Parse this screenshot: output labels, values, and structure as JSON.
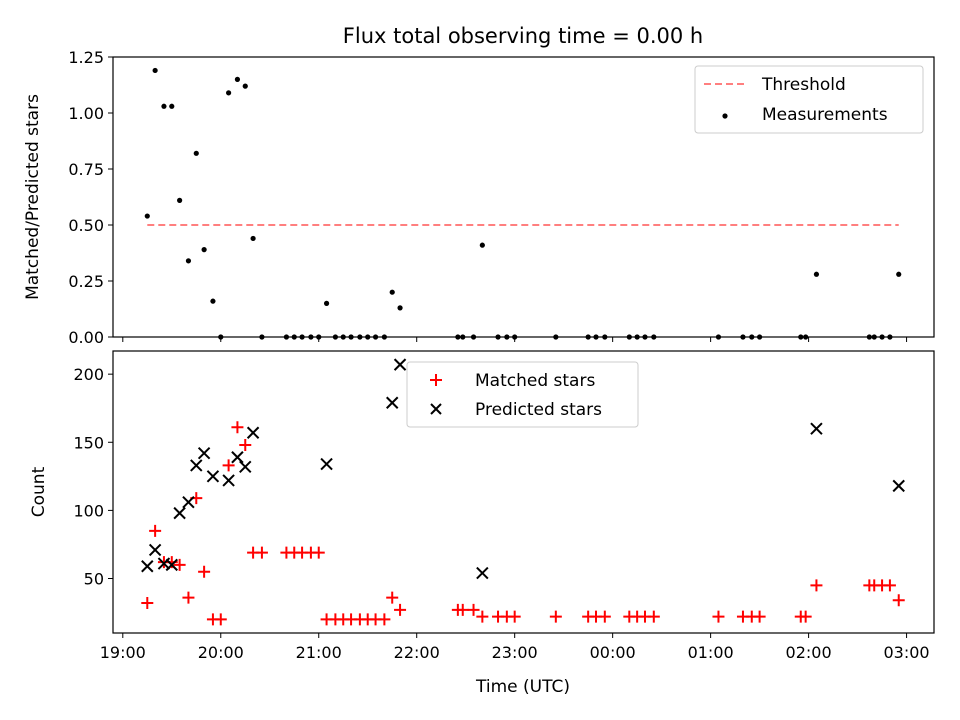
{
  "title": "Flux total observing time = 0.00 h",
  "chart_data": [
    {
      "type": "scatter",
      "ylabel": "Matched/Predicted stars",
      "ylim": [
        0,
        1.25
      ],
      "yticks": [
        "0.00",
        "0.25",
        "0.50",
        "0.75",
        "1.00",
        "1.25"
      ],
      "xlim_hours": [
        18.9,
        27.28
      ],
      "legend": {
        "placement": "top-right",
        "entries": [
          "Threshold",
          "Measurements"
        ]
      },
      "threshold": {
        "name": "Threshold",
        "value": 0.5,
        "x_start": 19.25,
        "x_end": 26.92,
        "color": "#ff7f7f"
      },
      "series": [
        {
          "name": "Measurements",
          "color": "#000000",
          "points": [
            [
              19.25,
              0.54
            ],
            [
              19.33,
              1.19
            ],
            [
              19.42,
              1.03
            ],
            [
              19.5,
              1.03
            ],
            [
              19.58,
              0.61
            ],
            [
              19.67,
              0.34
            ],
            [
              19.75,
              0.82
            ],
            [
              19.83,
              0.39
            ],
            [
              19.92,
              0.16
            ],
            [
              20.0,
              0.0
            ],
            [
              20.08,
              1.09
            ],
            [
              20.17,
              1.15
            ],
            [
              20.25,
              1.12
            ],
            [
              20.33,
              0.44
            ],
            [
              20.42,
              0.0
            ],
            [
              20.67,
              0.0
            ],
            [
              20.75,
              0.0
            ],
            [
              20.83,
              0.0
            ],
            [
              20.92,
              0.0
            ],
            [
              21.0,
              0.0
            ],
            [
              21.08,
              0.15
            ],
            [
              21.17,
              0.0
            ],
            [
              21.25,
              0.0
            ],
            [
              21.33,
              0.0
            ],
            [
              21.42,
              0.0
            ],
            [
              21.5,
              0.0
            ],
            [
              21.58,
              0.0
            ],
            [
              21.67,
              0.0
            ],
            [
              21.75,
              0.2
            ],
            [
              21.83,
              0.13
            ],
            [
              22.42,
              0.0
            ],
            [
              22.47,
              0.0
            ],
            [
              22.58,
              0.0
            ],
            [
              22.67,
              0.41
            ],
            [
              22.83,
              0.0
            ],
            [
              22.92,
              0.0
            ],
            [
              23.0,
              0.0
            ],
            [
              23.42,
              0.0
            ],
            [
              23.75,
              0.0
            ],
            [
              23.83,
              0.0
            ],
            [
              23.92,
              0.0
            ],
            [
              24.17,
              0.0
            ],
            [
              24.25,
              0.0
            ],
            [
              24.33,
              0.0
            ],
            [
              24.42,
              0.0
            ],
            [
              25.08,
              0.0
            ],
            [
              25.33,
              0.0
            ],
            [
              25.42,
              0.0
            ],
            [
              25.5,
              0.0
            ],
            [
              25.92,
              0.0
            ],
            [
              25.97,
              0.0
            ],
            [
              26.08,
              0.28
            ],
            [
              26.62,
              0.0
            ],
            [
              26.67,
              0.0
            ],
            [
              26.75,
              0.0
            ],
            [
              26.83,
              0.0
            ],
            [
              26.92,
              0.28
            ]
          ]
        }
      ]
    },
    {
      "type": "scatter",
      "xlabel": "Time (UTC)",
      "ylabel": "Count",
      "ylim": [
        10,
        217
      ],
      "yticks": [
        "50",
        "100",
        "150",
        "200"
      ],
      "xlim_hours": [
        18.9,
        27.28
      ],
      "xticks": [
        "19:00",
        "20:00",
        "21:00",
        "22:00",
        "23:00",
        "00:00",
        "01:00",
        "02:00",
        "03:00"
      ],
      "legend": {
        "placement": "top-center",
        "entries": [
          "Matched stars",
          "Predicted stars"
        ]
      },
      "series": [
        {
          "name": "Matched stars",
          "marker": "plus",
          "color": "#ff0000",
          "points": [
            [
              19.25,
              32
            ],
            [
              19.33,
              85
            ],
            [
              19.42,
              62
            ],
            [
              19.5,
              62
            ],
            [
              19.58,
              60
            ],
            [
              19.67,
              36
            ],
            [
              19.75,
              109
            ],
            [
              19.83,
              55
            ],
            [
              19.92,
              20
            ],
            [
              20.0,
              20
            ],
            [
              20.08,
              133
            ],
            [
              20.17,
              161
            ],
            [
              20.25,
              148
            ],
            [
              20.33,
              69
            ],
            [
              20.42,
              69
            ],
            [
              20.67,
              69
            ],
            [
              20.75,
              69
            ],
            [
              20.83,
              69
            ],
            [
              20.92,
              69
            ],
            [
              21.0,
              69
            ],
            [
              21.08,
              20
            ],
            [
              21.17,
              20
            ],
            [
              21.25,
              20
            ],
            [
              21.33,
              20
            ],
            [
              21.42,
              20
            ],
            [
              21.5,
              20
            ],
            [
              21.58,
              20
            ],
            [
              21.67,
              20
            ],
            [
              21.75,
              36
            ],
            [
              21.83,
              27
            ],
            [
              22.42,
              27
            ],
            [
              22.47,
              27
            ],
            [
              22.58,
              27
            ],
            [
              22.67,
              22
            ],
            [
              22.83,
              22
            ],
            [
              22.92,
              22
            ],
            [
              23.0,
              22
            ],
            [
              23.42,
              22
            ],
            [
              23.75,
              22
            ],
            [
              23.83,
              22
            ],
            [
              23.92,
              22
            ],
            [
              24.17,
              22
            ],
            [
              24.25,
              22
            ],
            [
              24.33,
              22
            ],
            [
              24.42,
              22
            ],
            [
              25.08,
              22
            ],
            [
              25.33,
              22
            ],
            [
              25.42,
              22
            ],
            [
              25.5,
              22
            ],
            [
              25.92,
              22
            ],
            [
              25.97,
              22
            ],
            [
              26.08,
              45
            ],
            [
              26.62,
              45
            ],
            [
              26.67,
              45
            ],
            [
              26.75,
              45
            ],
            [
              26.83,
              45
            ],
            [
              26.92,
              34
            ]
          ]
        },
        {
          "name": "Predicted stars",
          "marker": "x",
          "color": "#000000",
          "points": [
            [
              19.25,
              59
            ],
            [
              19.33,
              71
            ],
            [
              19.42,
              61
            ],
            [
              19.5,
              60
            ],
            [
              19.58,
              98
            ],
            [
              19.67,
              106
            ],
            [
              19.75,
              133
            ],
            [
              19.83,
              142
            ],
            [
              19.92,
              125
            ],
            [
              20.08,
              122
            ],
            [
              20.17,
              139
            ],
            [
              20.25,
              132
            ],
            [
              20.33,
              157
            ],
            [
              21.08,
              134
            ],
            [
              21.75,
              179
            ],
            [
              21.83,
              207
            ],
            [
              22.67,
              54
            ],
            [
              26.08,
              160
            ],
            [
              26.92,
              118
            ]
          ]
        }
      ]
    }
  ]
}
